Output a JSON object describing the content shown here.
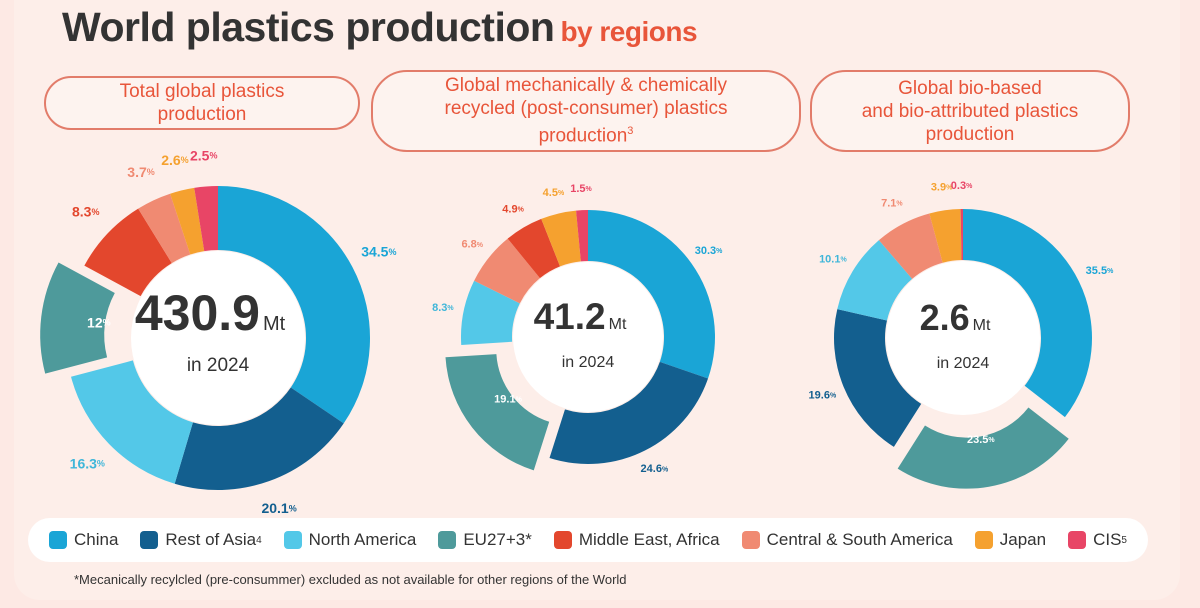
{
  "title": {
    "main": "World plastics production",
    "sub": "by regions"
  },
  "footnote": "*Mecanically recylcled (pre-consummer) excluded as not available for other regions of the World",
  "legend": [
    {
      "label": "China",
      "sup": "",
      "color": "#1aa5d6"
    },
    {
      "label": "Rest of Asia",
      "sup": "4",
      "color": "#135f8f"
    },
    {
      "label": "North America",
      "sup": "",
      "color": "#53c8e8"
    },
    {
      "label": "EU27+3*",
      "sup": "",
      "color": "#4e9a9b"
    },
    {
      "label": "Middle East, Africa",
      "sup": "",
      "color": "#e3472d"
    },
    {
      "label": "Central & South America",
      "sup": "",
      "color": "#f08a72"
    },
    {
      "label": "Japan",
      "sup": "",
      "color": "#f5a12f"
    },
    {
      "label": "CIS",
      "sup": "5",
      "color": "#e84566"
    }
  ],
  "panels": [
    {
      "heading": "Total global plastics\nproduction",
      "heading_sup": ""
    },
    {
      "heading": "Global mechanically & chemically\nrecycled (post-consumer) plastics\nproduction",
      "heading_sup": "3"
    },
    {
      "heading": "Global bio-based\nand bio-attributed plastics\nproduction",
      "heading_sup": ""
    }
  ],
  "chart_data": [
    {
      "type": "pie",
      "title": "Total global plastics production",
      "center_value": "430.9",
      "center_unit": "Mt",
      "center_label": "in 2024",
      "categories": [
        "China",
        "Rest of Asia",
        "North America",
        "EU27+3*",
        "Middle East, Africa",
        "Central & South America",
        "Japan",
        "CIS"
      ],
      "values": [
        34.5,
        20.1,
        16.3,
        12,
        8.3,
        3.7,
        2.6,
        2.5
      ],
      "labels": [
        "34.5",
        "20.1",
        "16.3",
        "12",
        "8.3",
        "3.7",
        "2.6",
        "2.5"
      ],
      "exploded": "EU27+3*"
    },
    {
      "type": "pie",
      "title": "Global mechanically & chemically recycled (post-consumer) plastics production",
      "center_value": "41.2",
      "center_unit": "Mt",
      "center_label": "in 2024",
      "categories": [
        "China",
        "Rest of Asia",
        "EU27+3*",
        "North America",
        "Central & South America",
        "Middle East, Africa",
        "Japan",
        "CIS"
      ],
      "values": [
        30.3,
        24.6,
        19.1,
        8.3,
        6.8,
        4.9,
        4.5,
        1.5
      ],
      "labels": [
        "30.3",
        "24.6",
        "19.1",
        "8.3",
        "6.8",
        "4.9",
        "4.5",
        "1.5"
      ],
      "exploded": "EU27+3*"
    },
    {
      "type": "pie",
      "title": "Global bio-based and bio-attributed plastics production",
      "center_value": "2.6",
      "center_unit": "Mt",
      "center_label": "in 2024",
      "categories": [
        "China",
        "EU27+3*",
        "Rest of Asia",
        "North America",
        "Central & South America",
        "Japan",
        "CIS"
      ],
      "values": [
        35.5,
        23.5,
        19.6,
        10.1,
        7.1,
        3.9,
        0.3
      ],
      "labels": [
        "35.5",
        "23.5",
        "19.6",
        "10.1",
        "7.1",
        "3.9",
        "0.3"
      ],
      "exploded": "EU27+3*"
    }
  ]
}
